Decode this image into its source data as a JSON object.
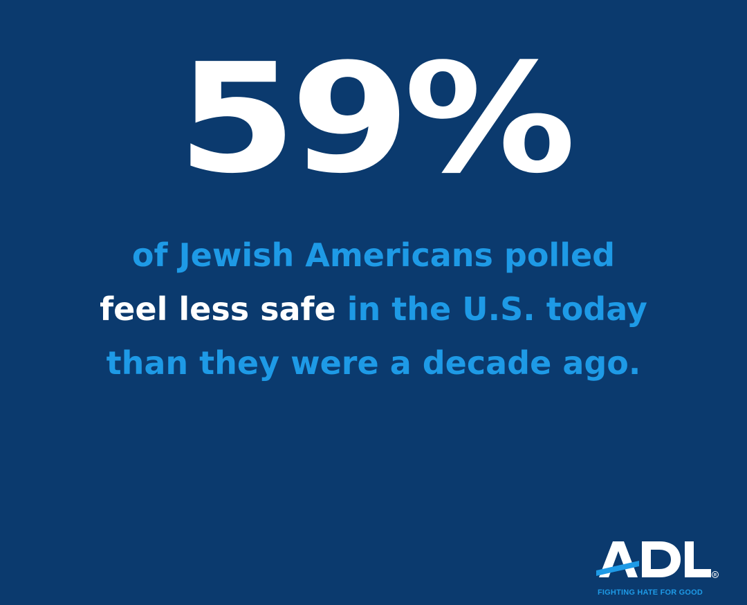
{
  "headline": {
    "stat": "59%"
  },
  "caption": {
    "line1": "of Jewish Americans polled",
    "line2_emphasis": "feel less safe",
    "line2_rest": " in the U.S. today",
    "line3": "than they were a decade ago."
  },
  "logo": {
    "wordmark": "ADL",
    "tagline": "FIGHTING HATE FOR GOOD"
  },
  "colors": {
    "background": "#0b3a6e",
    "accent": "#1e9ae6",
    "text": "#ffffff"
  }
}
